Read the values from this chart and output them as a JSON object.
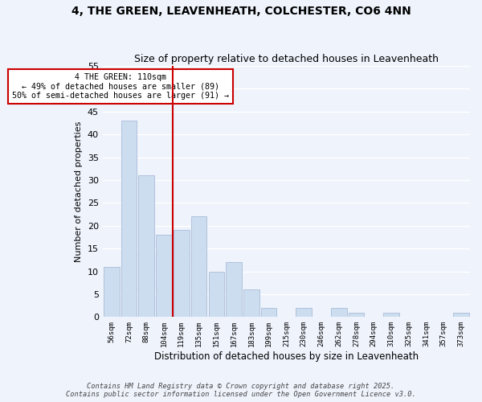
{
  "title": "4, THE GREEN, LEAVENHEATH, COLCHESTER, CO6 4NN",
  "subtitle": "Size of property relative to detached houses in Leavenheath",
  "xlabel": "Distribution of detached houses by size in Leavenheath",
  "ylabel": "Number of detached properties",
  "categories": [
    "56sqm",
    "72sqm",
    "88sqm",
    "104sqm",
    "119sqm",
    "135sqm",
    "151sqm",
    "167sqm",
    "183sqm",
    "199sqm",
    "215sqm",
    "230sqm",
    "246sqm",
    "262sqm",
    "278sqm",
    "294sqm",
    "310sqm",
    "325sqm",
    "341sqm",
    "357sqm",
    "373sqm"
  ],
  "values": [
    11,
    43,
    31,
    18,
    19,
    22,
    10,
    12,
    6,
    2,
    0,
    2,
    0,
    2,
    1,
    0,
    1,
    0,
    0,
    0,
    1
  ],
  "bar_color": "#ccddf0",
  "bar_edge_color": "#aabbd8",
  "background_color": "#eef3fc",
  "grid_color": "#ffffff",
  "vline_x": 3.5,
  "vline_color": "#cc0000",
  "annotation_line1": "4 THE GREEN: 110sqm",
  "annotation_line2": "← 49% of detached houses are smaller (89)",
  "annotation_line3": "50% of semi-detached houses are larger (91) →",
  "annotation_box_color": "#ffffff",
  "annotation_box_edge": "#cc0000",
  "ylim": [
    0,
    55
  ],
  "yticks": [
    0,
    5,
    10,
    15,
    20,
    25,
    30,
    35,
    40,
    45,
    50,
    55
  ],
  "footnote1": "Contains HM Land Registry data © Crown copyright and database right 2025.",
  "footnote2": "Contains public sector information licensed under the Open Government Licence v3.0."
}
